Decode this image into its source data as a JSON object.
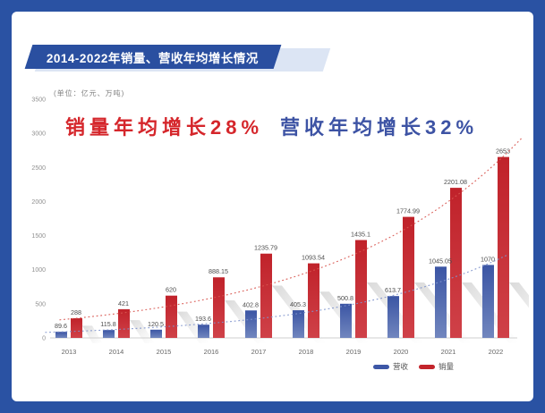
{
  "card": {
    "banner_title": "2014-2022年销量、营收年均增长情况",
    "unit_label": "(单位：亿元、万吨)",
    "headline_sales": "销量年均增长28%",
    "headline_revenue": "营收年均增长32%"
  },
  "legend": {
    "items": [
      {
        "label": "营收",
        "color": "#3D57A6"
      },
      {
        "label": "销量",
        "color": "#C3242B"
      }
    ]
  },
  "colors": {
    "frame_blue": "#2A52A3",
    "banner_blue": "#2A4FA0",
    "ribbon_light_blue": "#DCE5F4",
    "headline_red": "#D5262B",
    "headline_blue": "#3D53A4",
    "bar_blue_top": "#3B55A4",
    "bar_blue_bottom": "#7186BE",
    "bar_red_top": "#C0222A",
    "bar_red_bottom": "#CF4148",
    "trend_red": "#D8554F",
    "trend_blue": "#8093CC",
    "axis_gray": "#cfcfcf",
    "tick_text": "#909090",
    "value_text": "#4d4d4d",
    "year_text": "#666666"
  },
  "chart_data": {
    "type": "bar",
    "title": "2014-2022年销量、营收年均增长情况",
    "unit": "亿元、万吨",
    "categories": [
      "2013",
      "2014",
      "2015",
      "2016",
      "2017",
      "2018",
      "2019",
      "2020",
      "2021",
      "2022"
    ],
    "series": [
      {
        "name": "营收",
        "color": "#3D57A6",
        "values": [
          89.6,
          115.8,
          120.5,
          193.6,
          402.8,
          405.3,
          500.8,
          613.7,
          1045.05,
          1070
        ]
      },
      {
        "name": "销量",
        "color": "#C3242B",
        "values": [
          288,
          421,
          620,
          888.15,
          1235.79,
          1093.54,
          1435.1,
          1774.99,
          2201.08,
          2653
        ]
      }
    ],
    "ylim": [
      0,
      3500
    ],
    "yticks": [
      0,
      500,
      1000,
      1500,
      2000,
      2500,
      3000,
      3500
    ],
    "grid": false,
    "legend_position": "bottom",
    "annotations": [
      "销量年均增长28%",
      "营收年均增长32%"
    ],
    "trend": {
      "sales_growth_pct": 28,
      "revenue_growth_pct": 32
    }
  }
}
